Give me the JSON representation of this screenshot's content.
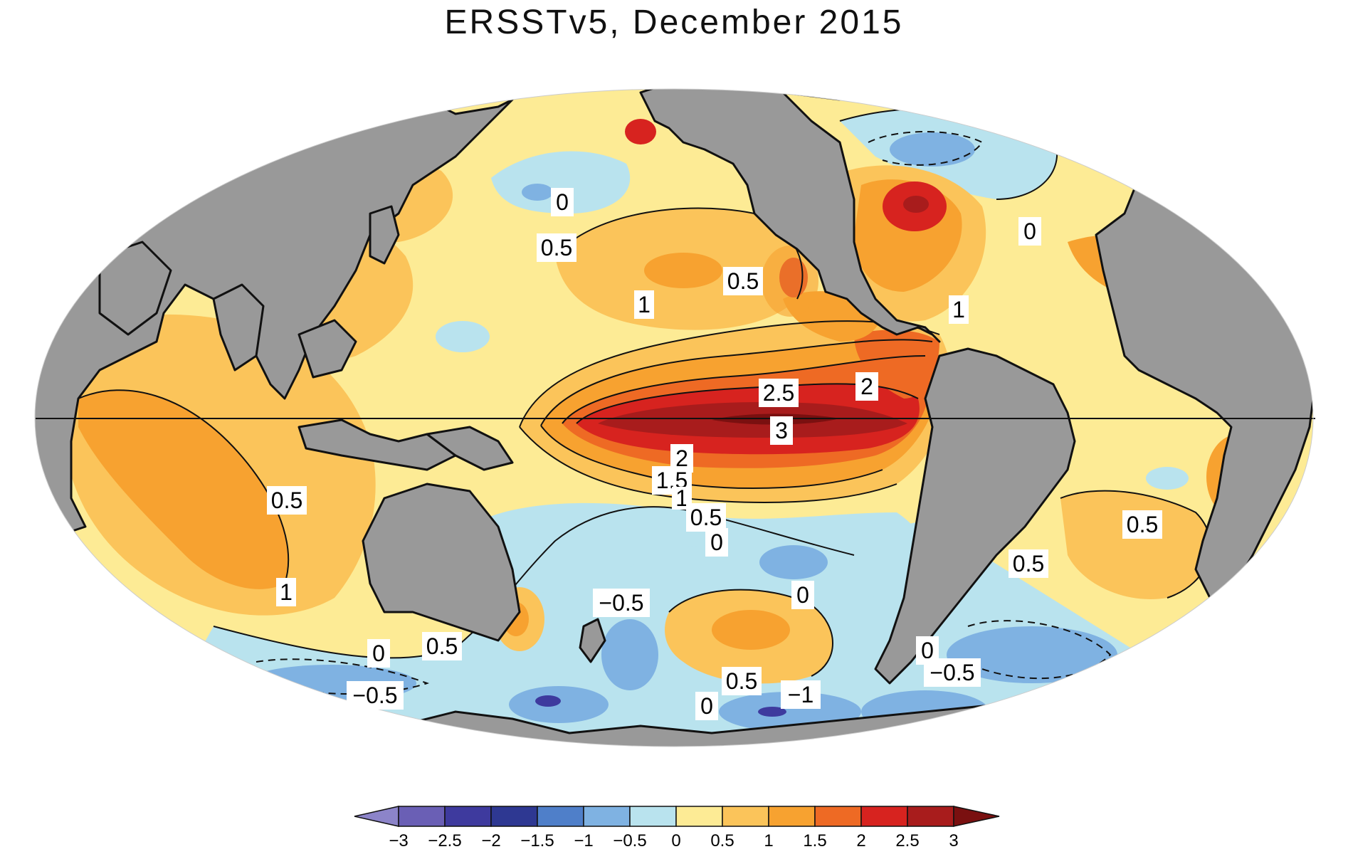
{
  "title": "ERSSTv5, December 2015",
  "colors": {
    "ocean_base": "#b9e3ee",
    "land": "#999999",
    "coast": "#111111"
  },
  "contour_labels": [
    {
      "id": "c1",
      "text": "0"
    },
    {
      "id": "c2",
      "text": "0.5"
    },
    {
      "id": "c3",
      "text": "1"
    },
    {
      "id": "c4",
      "text": "0.5"
    },
    {
      "id": "c5",
      "text": "0"
    },
    {
      "id": "c6",
      "text": "1"
    },
    {
      "id": "c7",
      "text": "2.5"
    },
    {
      "id": "c8",
      "text": "2"
    },
    {
      "id": "c9",
      "text": "3"
    },
    {
      "id": "c10",
      "text": "2"
    },
    {
      "id": "c11",
      "text": "1.5"
    },
    {
      "id": "c12",
      "text": "1"
    },
    {
      "id": "c13",
      "text": "0.5"
    },
    {
      "id": "c14",
      "text": "0"
    },
    {
      "id": "c15",
      "text": "0.5"
    },
    {
      "id": "c16",
      "text": "1"
    },
    {
      "id": "c17",
      "text": "-0.5"
    },
    {
      "id": "c18",
      "text": "0"
    },
    {
      "id": "c19",
      "text": "0.5"
    },
    {
      "id": "c20",
      "text": "0"
    },
    {
      "id": "c21",
      "text": "-0.5"
    },
    {
      "id": "c22",
      "text": "0.5"
    },
    {
      "id": "c23",
      "text": "0"
    },
    {
      "id": "c24",
      "text": "-1"
    },
    {
      "id": "c25",
      "text": "0.5"
    },
    {
      "id": "c26",
      "text": "0.5"
    },
    {
      "id": "c27",
      "text": "0"
    },
    {
      "id": "c28",
      "text": "-0.5"
    }
  ],
  "colorbar": {
    "ticks": [
      "-3",
      "-2.5",
      "-2",
      "-1.5",
      "-1",
      "-0.5",
      "0",
      "0.5",
      "1",
      "1.5",
      "2",
      "2.5",
      "3"
    ],
    "colors": [
      "#8c84c9",
      "#6a5fb5",
      "#3e3a9e",
      "#2e3892",
      "#4f7fc9",
      "#7fb2e2",
      "#b9e3ee",
      "#fdeb95",
      "#fbc45a",
      "#f7a230",
      "#ee6a24",
      "#d7231f",
      "#a81c1c",
      "#7a1010"
    ]
  }
}
